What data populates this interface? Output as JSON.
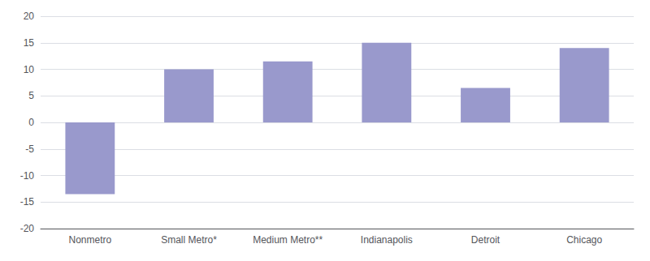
{
  "chart_data": {
    "type": "bar",
    "categories": [
      "Nonmetro",
      "Small Metro*",
      "Medium Metro**",
      "Indianapolis",
      "Detroit",
      "Chicago"
    ],
    "values": [
      -13.5,
      10.0,
      11.5,
      15.0,
      6.5,
      14.0
    ],
    "color": "#9999cc",
    "ylim": [
      -20,
      20
    ],
    "yticks": [
      -20,
      -15,
      -10,
      -5,
      0,
      5,
      10,
      15,
      20
    ],
    "grid": true
  }
}
